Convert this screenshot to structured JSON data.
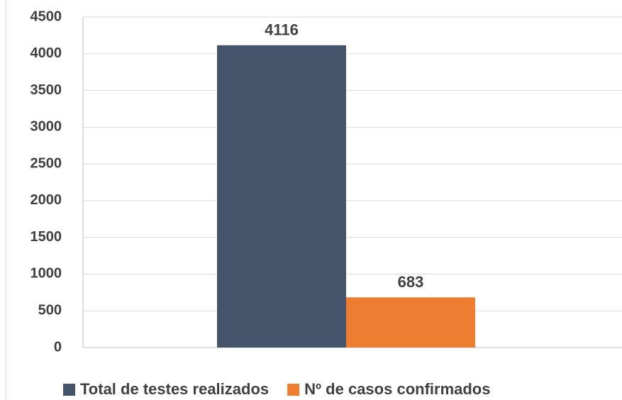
{
  "chart_data": {
    "type": "bar",
    "categories": [
      null
    ],
    "series": [
      {
        "name": "Total de testes realizados",
        "color": "#44546a",
        "values": [
          4116
        ]
      },
      {
        "name": "Nº de casos confirmados",
        "color": "#ed7d31",
        "values": [
          683
        ]
      }
    ],
    "ylim": [
      0,
      4500
    ],
    "yticks": [
      0,
      500,
      1000,
      1500,
      2000,
      2500,
      3000,
      3500,
      4000,
      4500
    ],
    "grid": true,
    "legend": "bottom"
  }
}
